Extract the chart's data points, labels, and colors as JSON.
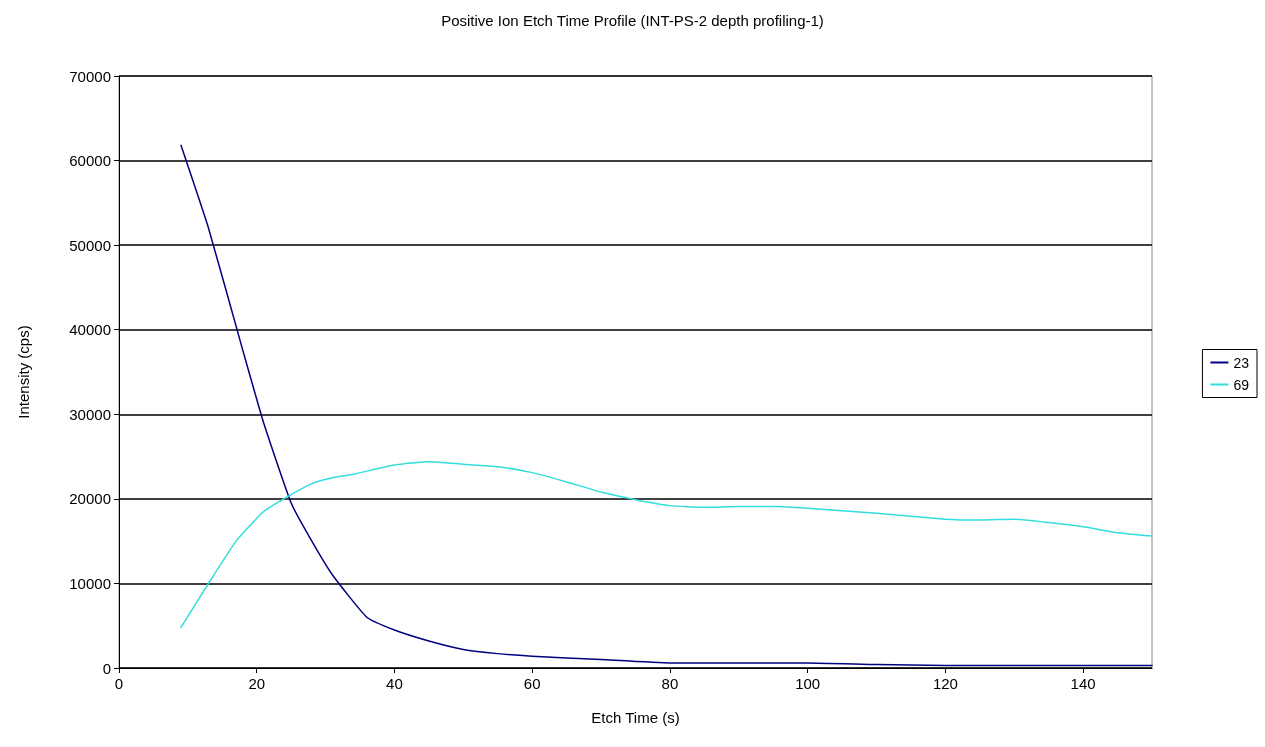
{
  "chart_data": {
    "type": "line",
    "title": "Positive Ion Etch Time Profile (INT-PS-2 depth profiling-1)",
    "xlabel": "Etch Time (s)",
    "ylabel": "Intensity (cps)",
    "xlim": [
      0,
      150
    ],
    "xticks": [
      0,
      20,
      40,
      60,
      80,
      100,
      120,
      140
    ],
    "ylim": [
      0,
      70000
    ],
    "yticks": [
      0,
      10000,
      20000,
      30000,
      40000,
      50000,
      60000,
      70000
    ],
    "grid": "y",
    "legend": "right",
    "marker": "none",
    "line_style": "solid",
    "series": [
      {
        "name": "23",
        "color": "#000080",
        "x": [
          9,
          13,
          18,
          21,
          25,
          28,
          31,
          36,
          40,
          45,
          50,
          55,
          60,
          70,
          80,
          100,
          110,
          120,
          140,
          150
        ],
        "values": [
          61800,
          52000,
          37500,
          29000,
          19500,
          15000,
          11000,
          6000,
          4500,
          3200,
          2200,
          1700,
          1400,
          1000,
          600,
          600,
          400,
          300,
          300,
          300
        ]
      },
      {
        "name": "69",
        "color": "#33dddd",
        "x": [
          9,
          13,
          17,
          21,
          25,
          28,
          31,
          34,
          40,
          45,
          50,
          55,
          60,
          65,
          70,
          75,
          80,
          85,
          90,
          95,
          100,
          110,
          120,
          125,
          130,
          135,
          140,
          145,
          150
        ],
        "values": [
          4800,
          10000,
          15000,
          18500,
          20500,
          21800,
          22500,
          22900,
          24000,
          24400,
          24100,
          23800,
          23100,
          22000,
          20800,
          19900,
          19200,
          19000,
          19100,
          19100,
          18900,
          18300,
          17600,
          17500,
          17600,
          17200,
          16700,
          16000,
          15600
        ]
      }
    ]
  }
}
